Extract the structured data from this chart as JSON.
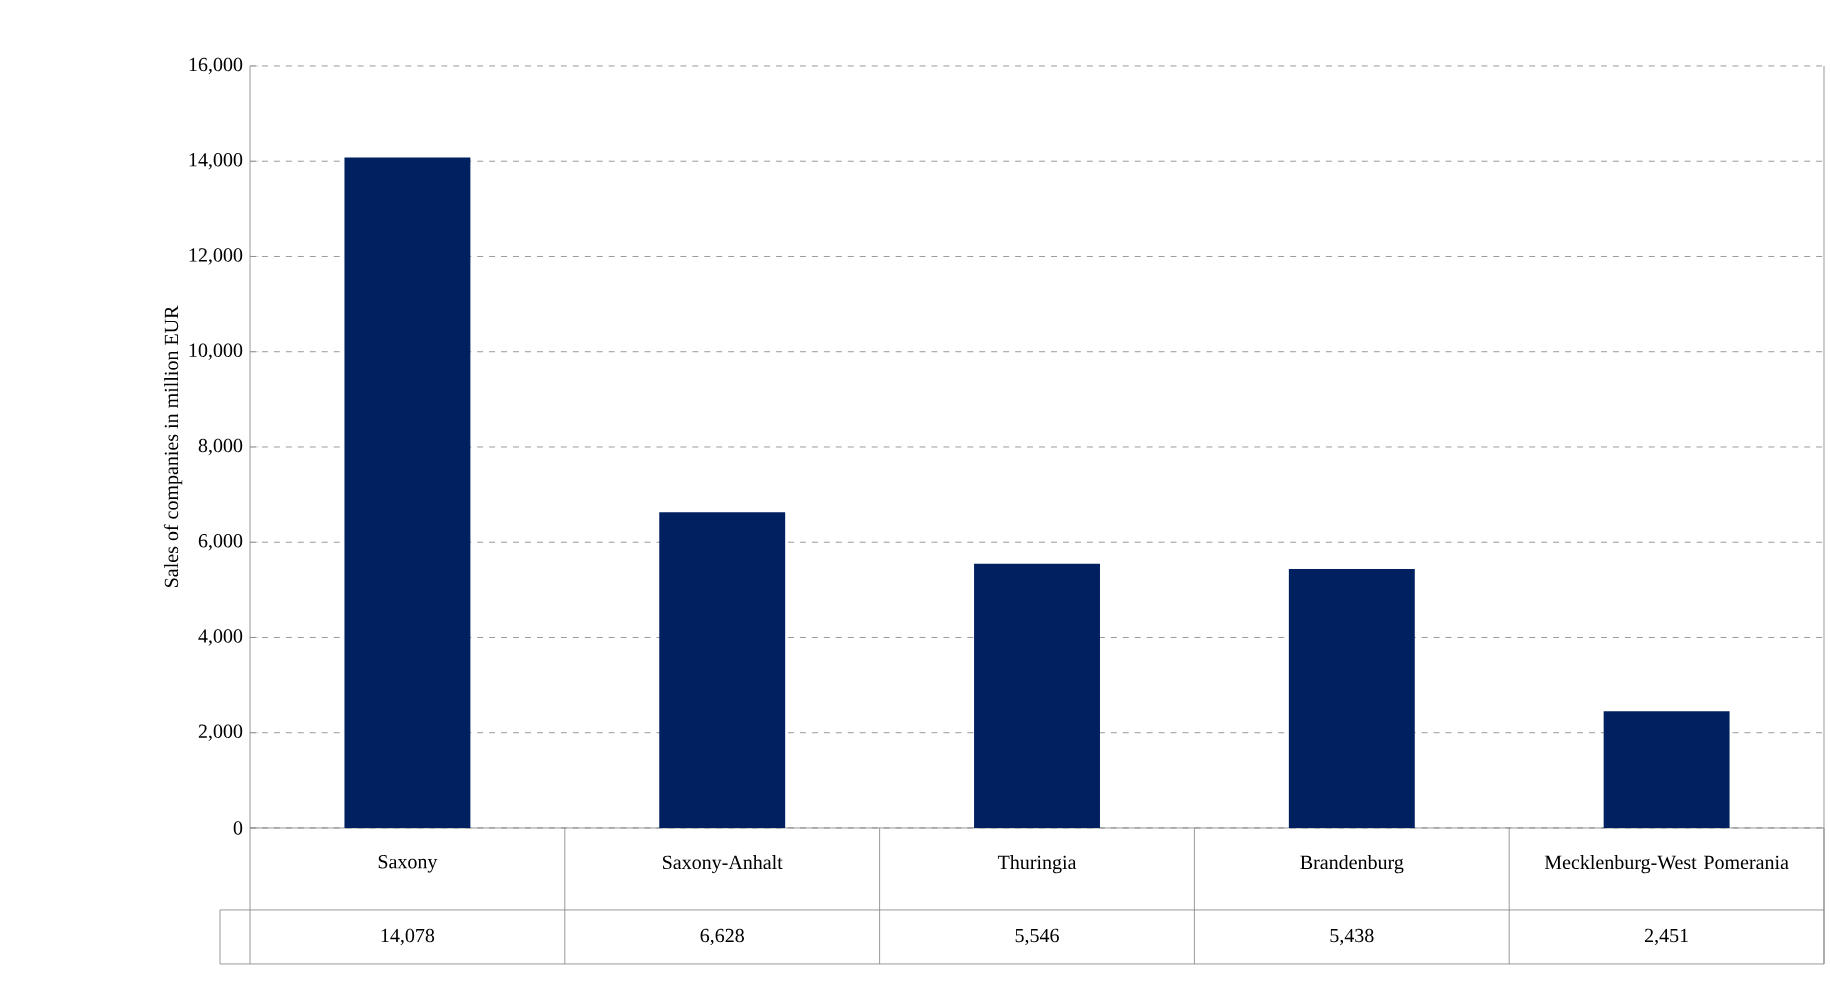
{
  "chart_data": {
    "type": "bar",
    "ylabel": "Sales of companies in million EUR",
    "categories": [
      "Saxony",
      "Saxony-Anhalt",
      "Thuringia",
      "Brandenburg",
      "Mecklenburg-West Pomerania"
    ],
    "values": [
      14078,
      6628,
      5546,
      5438,
      2451
    ],
    "value_labels": [
      "14,078",
      "6,628",
      "5,546",
      "5,438",
      "2,451"
    ],
    "color": "#002060",
    "ylim": [
      0,
      16000
    ],
    "yticks": [
      0,
      {
        "value": 2000,
        "label": "2,000"
      },
      {
        "value": 4000,
        "label": "4,000"
      },
      {
        "value": 6000,
        "label": "6,000"
      },
      {
        "value": 8000,
        "label": "8,000"
      },
      {
        "value": 10000,
        "label": "10,000"
      },
      {
        "value": 12000,
        "label": "12,000"
      },
      {
        "value": 14000,
        "label": "14,000"
      },
      {
        "value": 16000,
        "label": "16,000"
      }
    ],
    "grid": "y"
  }
}
